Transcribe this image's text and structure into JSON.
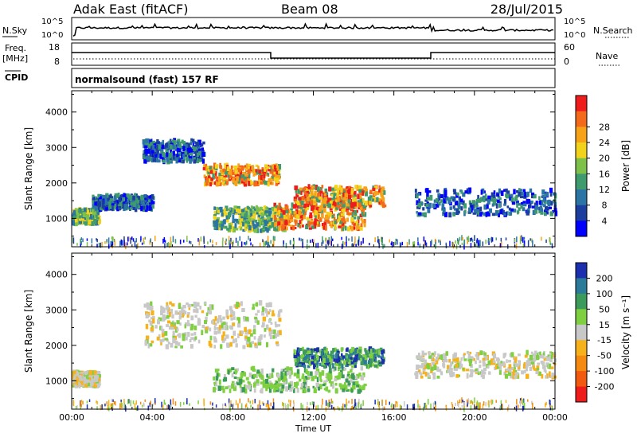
{
  "header": {
    "station": "Adak East (fitACF)",
    "beam": "Beam 08",
    "date": "28/Jul/2015"
  },
  "noise_panel": {
    "left_label": "N.Sky",
    "left_ticks": [
      "10^5",
      "10^0"
    ],
    "right_label": "N.Search",
    "right_ticks": [
      "10^5",
      "10^0"
    ]
  },
  "freq_panel": {
    "left_label_1": "Freq.",
    "left_label_2": "[MHz]",
    "left_ticks": [
      "18",
      "8"
    ],
    "right_label": "Nave",
    "right_ticks": [
      "60",
      "0"
    ]
  },
  "cpid": {
    "label": "CPID",
    "text": "normalsound (fast) 157 RF"
  },
  "chart_data": [
    {
      "type": "heatmap",
      "name": "power",
      "ylabel": "Slant Range [km]",
      "xlabel": "",
      "ylim": [
        200,
        4600
      ],
      "xlim": [
        0,
        24
      ],
      "y_ticks": [
        1000,
        2000,
        3000,
        4000
      ],
      "x_ticks_hours": [
        0,
        4,
        8,
        12,
        16,
        20,
        24
      ],
      "x_tick_labels": [
        "00:00",
        "04:00",
        "08:00",
        "12:00",
        "16:00",
        "20:00",
        "00:00"
      ],
      "colorbar": {
        "label": "Power [dB]",
        "ticks": [
          "4",
          "8",
          "12",
          "16",
          "20",
          "24",
          "28"
        ],
        "colors": [
          "#0000ff",
          "#1c3f9e",
          "#2b74a4",
          "#3f9a6e",
          "#7dc04a",
          "#f2d31b",
          "#f7a31a",
          "#f36b1a",
          "#ef1c1c"
        ]
      },
      "regions": [
        {
          "t": [
            0.0,
            1.3
          ],
          "r": [
            850,
            1250
          ],
          "level": "medium"
        },
        {
          "t": [
            1.0,
            4.0
          ],
          "r": [
            1250,
            1650
          ],
          "level": "low"
        },
        {
          "t": [
            3.5,
            6.5
          ],
          "r": [
            2600,
            3200
          ],
          "level": "low"
        },
        {
          "t": [
            6.5,
            10.3
          ],
          "r": [
            1950,
            2500
          ],
          "level": "high"
        },
        {
          "t": [
            7.0,
            10.5
          ],
          "r": [
            650,
            1300
          ],
          "level": "medium"
        },
        {
          "t": [
            10.0,
            14.5
          ],
          "r": [
            700,
            1400
          ],
          "level": "high"
        },
        {
          "t": [
            11.0,
            15.5
          ],
          "r": [
            1350,
            1900
          ],
          "level": "high"
        },
        {
          "t": [
            17.0,
            24.0
          ],
          "r": [
            1100,
            1800
          ],
          "level": "low"
        },
        {
          "t": [
            0.0,
            24.0
          ],
          "r": [
            200,
            450
          ],
          "level": "scatter"
        }
      ]
    },
    {
      "type": "heatmap",
      "name": "velocity",
      "ylabel": "Slant Range [km]",
      "xlabel": "Time UT",
      "ylim": [
        200,
        4600
      ],
      "xlim": [
        0,
        24
      ],
      "y_ticks": [
        1000,
        2000,
        3000,
        4000
      ],
      "x_ticks_hours": [
        0,
        4,
        8,
        12,
        16,
        20,
        24
      ],
      "x_tick_labels": [
        "00:00",
        "04:00",
        "08:00",
        "12:00",
        "16:00",
        "20:00",
        "00:00"
      ],
      "colorbar": {
        "label": "Velocity [m s⁻¹]",
        "ticks": [
          "200",
          "100",
          "50",
          "15",
          "-15",
          "-50",
          "-100",
          "-200"
        ],
        "colors": [
          "#1c2fae",
          "#2b7a9a",
          "#3c9a5a",
          "#7ed040",
          "#c8c8c8",
          "#f5b21a",
          "#f58a10",
          "#f25a10",
          "#ef1c1c"
        ]
      },
      "regions": [
        {
          "t": [
            0.0,
            1.3
          ],
          "r": [
            850,
            1250
          ],
          "level": "ground"
        },
        {
          "t": [
            3.5,
            10.3
          ],
          "r": [
            1950,
            3200
          ],
          "level": "ground"
        },
        {
          "t": [
            7.0,
            14.5
          ],
          "r": [
            700,
            1350
          ],
          "level": "positive"
        },
        {
          "t": [
            11.0,
            15.5
          ],
          "r": [
            1400,
            1900
          ],
          "level": "strong-positive"
        },
        {
          "t": [
            17.0,
            24.0
          ],
          "r": [
            1100,
            1800
          ],
          "level": "ground"
        },
        {
          "t": [
            0.0,
            24.0
          ],
          "r": [
            200,
            450
          ],
          "level": "scatter"
        }
      ]
    }
  ]
}
